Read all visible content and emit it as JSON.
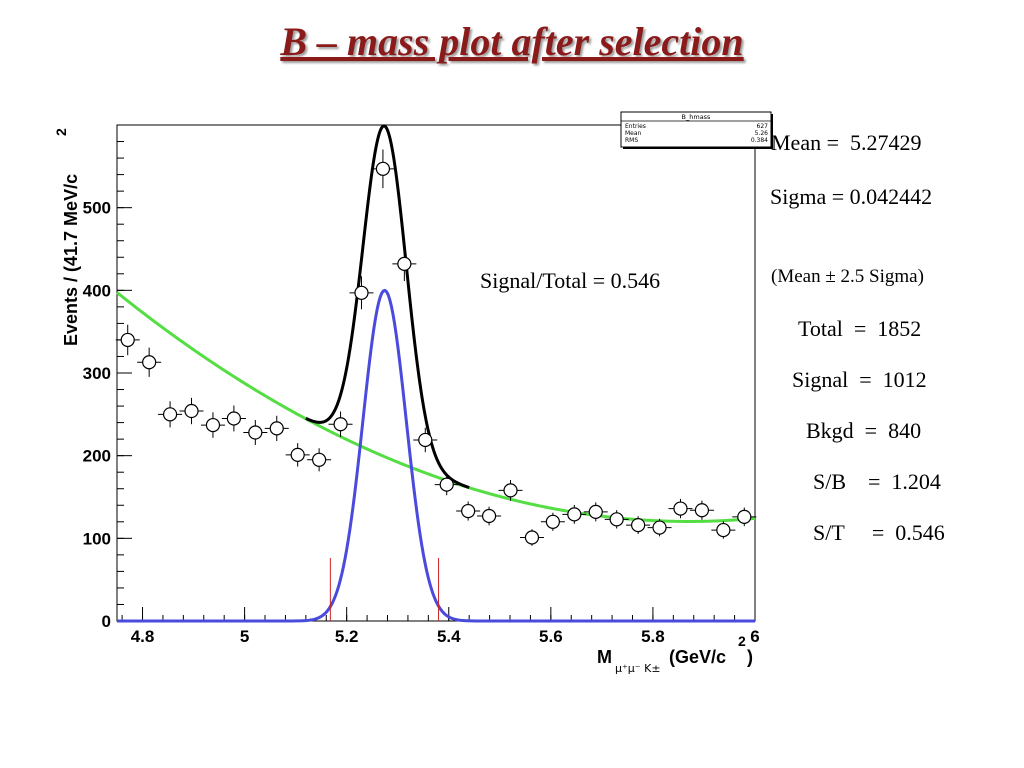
{
  "title": "B – mass plot after selection",
  "signal_total_label": "Signal/Total = 0.546",
  "stats": {
    "mean": "Mean =  5.27429",
    "sigma": "Sigma = 0.042442",
    "window": "(Mean ± 2.5 Sigma)",
    "total": "Total  =  1852",
    "signal": "Signal  =  1012",
    "bkgd": "Bkgd  =  840",
    "sb": "S/B    =  1.204",
    "st": "S/T     =  0.546"
  },
  "stat_box": {
    "name": "B_hmass",
    "rows": [
      {
        "label": "Entries",
        "value": "627"
      },
      {
        "label": "Mean",
        "value": "5.26"
      },
      {
        "label": "RMS",
        "value": "0.384"
      }
    ]
  },
  "colors": {
    "title": "#8b1a1a",
    "total_fit": "#000000",
    "signal_fit": "#4a4adc",
    "background_fit": "#55dd44",
    "window_lines": "#cc2222"
  },
  "chart_data": {
    "type": "scatter",
    "xlabel": "M",
    "xlabel_sub": "μ⁺μ⁻ K±",
    "xlabel_unit": "(GeV/c",
    "ylabel": "Events / (41.7 MeV/c",
    "xlim": [
      4.75,
      6.0
    ],
    "ylim": [
      0,
      600
    ],
    "x_ticks": [
      "4.8",
      "5",
      "5.2",
      "5.4",
      "5.6",
      "5.8",
      "6"
    ],
    "y_ticks": [
      "0",
      "100",
      "200",
      "300",
      "400",
      "500"
    ],
    "x_tick_values": [
      4.8,
      5.0,
      5.2,
      5.4,
      5.6,
      5.8,
      6.0
    ],
    "y_tick_values": [
      0,
      100,
      200,
      300,
      400,
      500
    ],
    "points": [
      {
        "x": 4.771,
        "y": 340
      },
      {
        "x": 4.813,
        "y": 313
      },
      {
        "x": 4.854,
        "y": 250
      },
      {
        "x": 4.896,
        "y": 254
      },
      {
        "x": 4.938,
        "y": 237
      },
      {
        "x": 4.979,
        "y": 245
      },
      {
        "x": 5.021,
        "y": 228
      },
      {
        "x": 5.063,
        "y": 233
      },
      {
        "x": 5.104,
        "y": 201
      },
      {
        "x": 5.146,
        "y": 195
      },
      {
        "x": 5.188,
        "y": 238
      },
      {
        "x": 5.229,
        "y": 397
      },
      {
        "x": 5.271,
        "y": 547
      },
      {
        "x": 5.313,
        "y": 432
      },
      {
        "x": 5.354,
        "y": 219
      },
      {
        "x": 5.396,
        "y": 165
      },
      {
        "x": 5.438,
        "y": 133
      },
      {
        "x": 5.479,
        "y": 127
      },
      {
        "x": 5.521,
        "y": 158
      },
      {
        "x": 5.563,
        "y": 101
      },
      {
        "x": 5.604,
        "y": 120
      },
      {
        "x": 5.646,
        "y": 129
      },
      {
        "x": 5.688,
        "y": 132
      },
      {
        "x": 5.729,
        "y": 123
      },
      {
        "x": 5.771,
        "y": 116
      },
      {
        "x": 5.813,
        "y": 113
      },
      {
        "x": 5.854,
        "y": 136
      },
      {
        "x": 5.896,
        "y": 134
      },
      {
        "x": 5.938,
        "y": 110
      },
      {
        "x": 5.979,
        "y": 126
      }
    ],
    "fit": {
      "mean": 5.27429,
      "sigma": 0.042442,
      "amplitude": 400,
      "background": {
        "a": 120.4,
        "b": 220.8,
        "c": 5.87
      }
    },
    "window": [
      5.168,
      5.38
    ]
  }
}
